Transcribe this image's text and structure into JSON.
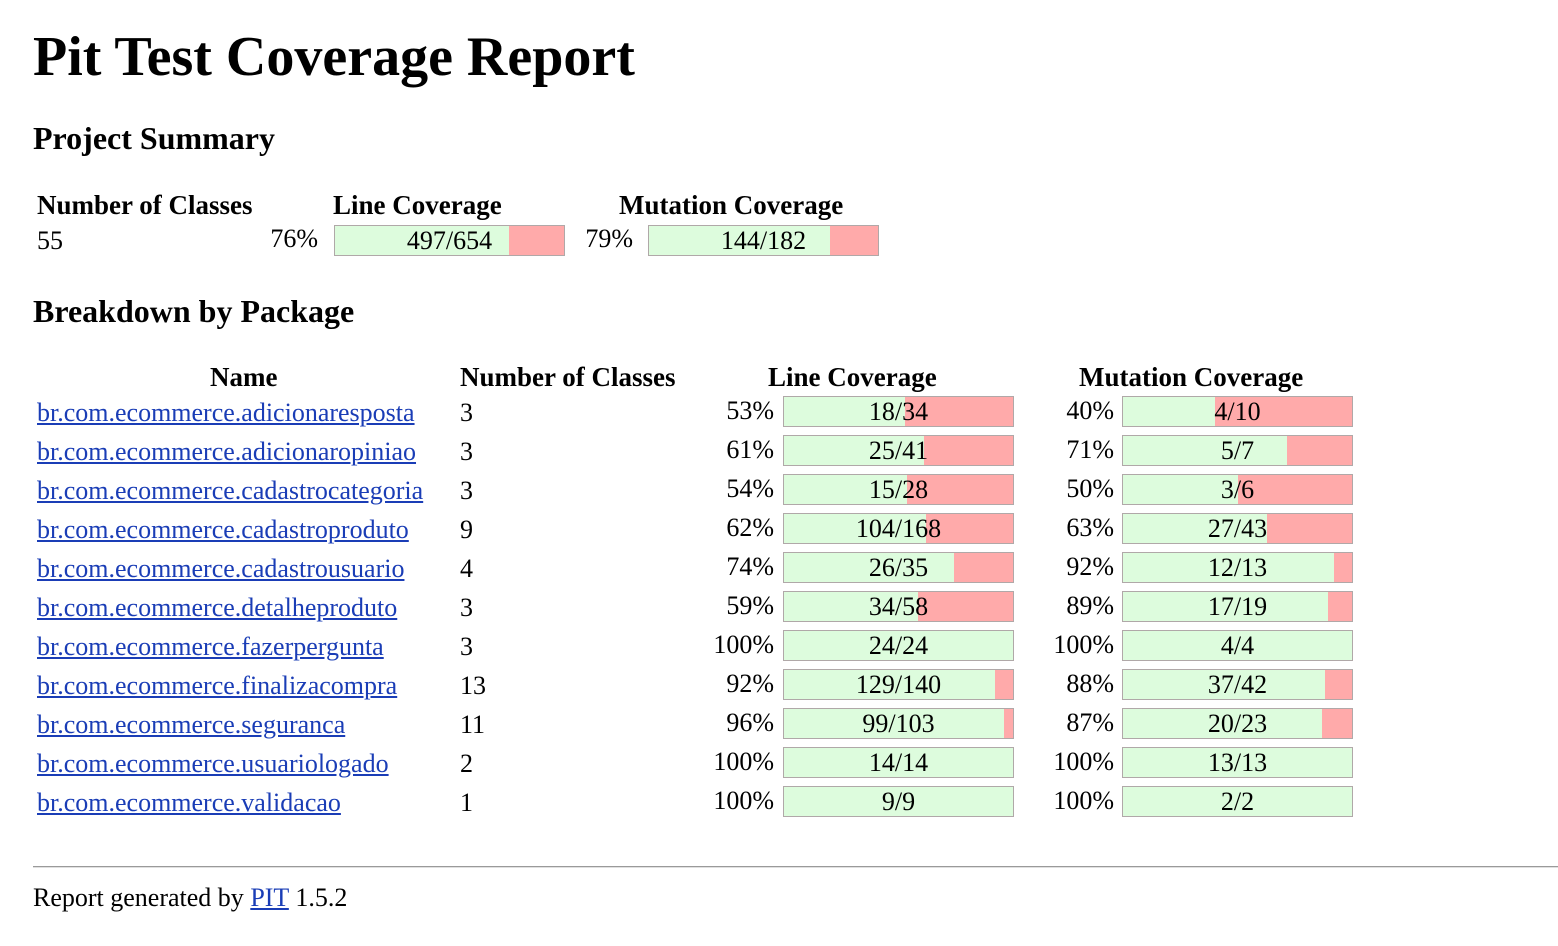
{
  "title": "Pit Test Coverage Report",
  "project_summary": {
    "heading": "Project Summary",
    "headers": {
      "classes": "Number of Classes",
      "line": "Line Coverage",
      "mutation": "Mutation Coverage"
    },
    "classes": "55",
    "line": {
      "pct": "76%",
      "ratio": "497/654",
      "covered": 497,
      "total": 654
    },
    "mutation": {
      "pct": "79%",
      "ratio": "144/182",
      "covered": 144,
      "total": 182
    }
  },
  "breakdown": {
    "heading": "Breakdown by Package",
    "headers": {
      "name": "Name",
      "classes": "Number of Classes",
      "line": "Line Coverage",
      "mutation": "Mutation Coverage"
    },
    "packages": [
      {
        "name": "br.com.ecommerce.adicionaresposta",
        "classes": "3",
        "line_pct": "53%",
        "line_ratio": "18/34",
        "line_cov": 18,
        "line_tot": 34,
        "mut_pct": "40%",
        "mut_ratio": "4/10",
        "mut_cov": 4,
        "mut_tot": 10
      },
      {
        "name": "br.com.ecommerce.adicionaropiniao",
        "classes": "3",
        "line_pct": "61%",
        "line_ratio": "25/41",
        "line_cov": 25,
        "line_tot": 41,
        "mut_pct": "71%",
        "mut_ratio": "5/7",
        "mut_cov": 5,
        "mut_tot": 7
      },
      {
        "name": "br.com.ecommerce.cadastrocategoria",
        "classes": "3",
        "line_pct": "54%",
        "line_ratio": "15/28",
        "line_cov": 15,
        "line_tot": 28,
        "mut_pct": "50%",
        "mut_ratio": "3/6",
        "mut_cov": 3,
        "mut_tot": 6
      },
      {
        "name": "br.com.ecommerce.cadastroproduto",
        "classes": "9",
        "line_pct": "62%",
        "line_ratio": "104/168",
        "line_cov": 104,
        "line_tot": 168,
        "mut_pct": "63%",
        "mut_ratio": "27/43",
        "mut_cov": 27,
        "mut_tot": 43
      },
      {
        "name": "br.com.ecommerce.cadastrousuario",
        "classes": "4",
        "line_pct": "74%",
        "line_ratio": "26/35",
        "line_cov": 26,
        "line_tot": 35,
        "mut_pct": "92%",
        "mut_ratio": "12/13",
        "mut_cov": 12,
        "mut_tot": 13
      },
      {
        "name": "br.com.ecommerce.detalheproduto",
        "classes": "3",
        "line_pct": "59%",
        "line_ratio": "34/58",
        "line_cov": 34,
        "line_tot": 58,
        "mut_pct": "89%",
        "mut_ratio": "17/19",
        "mut_cov": 17,
        "mut_tot": 19
      },
      {
        "name": "br.com.ecommerce.fazerpergunta",
        "classes": "3",
        "line_pct": "100%",
        "line_ratio": "24/24",
        "line_cov": 24,
        "line_tot": 24,
        "mut_pct": "100%",
        "mut_ratio": "4/4",
        "mut_cov": 4,
        "mut_tot": 4
      },
      {
        "name": "br.com.ecommerce.finalizacompra",
        "classes": "13",
        "line_pct": "92%",
        "line_ratio": "129/140",
        "line_cov": 129,
        "line_tot": 140,
        "mut_pct": "88%",
        "mut_ratio": "37/42",
        "mut_cov": 37,
        "mut_tot": 42
      },
      {
        "name": "br.com.ecommerce.seguranca",
        "classes": "11",
        "line_pct": "96%",
        "line_ratio": "99/103",
        "line_cov": 99,
        "line_tot": 103,
        "mut_pct": "87%",
        "mut_ratio": "20/23",
        "mut_cov": 20,
        "mut_tot": 23
      },
      {
        "name": "br.com.ecommerce.usuariologado",
        "classes": "2",
        "line_pct": "100%",
        "line_ratio": "14/14",
        "line_cov": 14,
        "line_tot": 14,
        "mut_pct": "100%",
        "mut_ratio": "13/13",
        "mut_cov": 13,
        "mut_tot": 13
      },
      {
        "name": "br.com.ecommerce.validacao",
        "classes": "1",
        "line_pct": "100%",
        "line_ratio": "9/9",
        "line_cov": 9,
        "line_tot": 9,
        "mut_pct": "100%",
        "mut_ratio": "2/2",
        "mut_cov": 2,
        "mut_tot": 2
      }
    ]
  },
  "footer": {
    "prefix": "Report generated by",
    "link": "PIT",
    "version": "1.5.2"
  },
  "colors": {
    "covered": "#ddfcdd",
    "uncovered": "#ffaaaa",
    "link": "#1a3db6"
  }
}
